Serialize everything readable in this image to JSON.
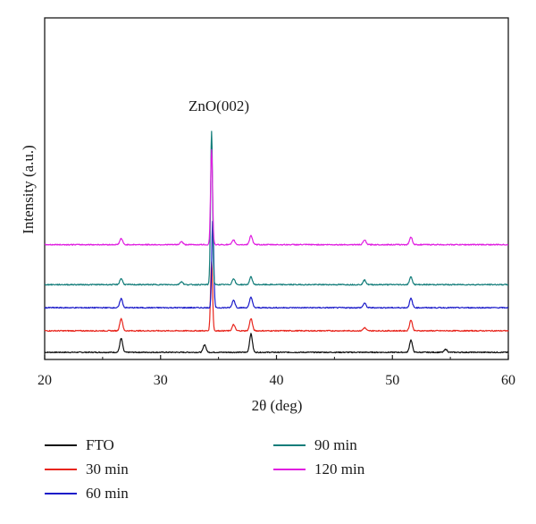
{
  "chart_data": {
    "type": "line",
    "title": "",
    "xlabel": "2θ (deg)",
    "ylabel": "Intensity (a.u.)",
    "xlim": [
      20,
      60
    ],
    "xticks": [
      20,
      30,
      40,
      50,
      60
    ],
    "yticks_shown": false,
    "grid": false,
    "legend_placement": "bottom",
    "annotations": [
      {
        "text": "ZnO(002)",
        "x": 34.4
      }
    ],
    "series": [
      {
        "name": "FTO",
        "color": "#111111",
        "offset": 0.0,
        "peaks": [
          {
            "x": 26.6,
            "height": 0.9
          },
          {
            "x": 33.8,
            "height": 0.5
          },
          {
            "x": 37.8,
            "height": 1.2
          },
          {
            "x": 51.6,
            "height": 0.8
          },
          {
            "x": 54.6,
            "height": 0.2
          }
        ]
      },
      {
        "name": "30 min",
        "color": "#e8251c",
        "offset": 1.4,
        "peaks": [
          {
            "x": 26.6,
            "height": 0.8
          },
          {
            "x": 34.4,
            "height": 4.5
          },
          {
            "x": 36.3,
            "height": 0.4
          },
          {
            "x": 37.8,
            "height": 0.8
          },
          {
            "x": 47.6,
            "height": 0.2
          },
          {
            "x": 51.6,
            "height": 0.7
          }
        ]
      },
      {
        "name": "60 min",
        "color": "#1b1bc9",
        "offset": 2.9,
        "peaks": [
          {
            "x": 26.6,
            "height": 0.6
          },
          {
            "x": 34.5,
            "height": 5.8
          },
          {
            "x": 36.3,
            "height": 0.5
          },
          {
            "x": 37.8,
            "height": 0.7
          },
          {
            "x": 47.6,
            "height": 0.3
          },
          {
            "x": 51.6,
            "height": 0.6
          }
        ]
      },
      {
        "name": "90 min",
        "color": "#137d7a",
        "offset": 4.4,
        "peaks": [
          {
            "x": 26.6,
            "height": 0.4
          },
          {
            "x": 31.8,
            "height": 0.2
          },
          {
            "x": 34.4,
            "height": 10.0
          },
          {
            "x": 36.3,
            "height": 0.4
          },
          {
            "x": 37.8,
            "height": 0.5
          },
          {
            "x": 47.6,
            "height": 0.3
          },
          {
            "x": 51.6,
            "height": 0.5
          }
        ]
      },
      {
        "name": "120 min",
        "color": "#e01ee0",
        "offset": 7.0,
        "peaks": [
          {
            "x": 26.6,
            "height": 0.4
          },
          {
            "x": 31.8,
            "height": 0.2
          },
          {
            "x": 34.4,
            "height": 6.2
          },
          {
            "x": 36.3,
            "height": 0.3
          },
          {
            "x": 37.8,
            "height": 0.6
          },
          {
            "x": 47.6,
            "height": 0.3
          },
          {
            "x": 51.6,
            "height": 0.5
          }
        ]
      }
    ]
  },
  "legend": {
    "items": [
      {
        "label": "FTO",
        "color": "#111111"
      },
      {
        "label": "30 min",
        "color": "#e8251c"
      },
      {
        "label": "60 min",
        "color": "#1b1bc9"
      },
      {
        "label": "90 min",
        "color": "#137d7a"
      },
      {
        "label": "120 min",
        "color": "#e01ee0"
      }
    ]
  }
}
